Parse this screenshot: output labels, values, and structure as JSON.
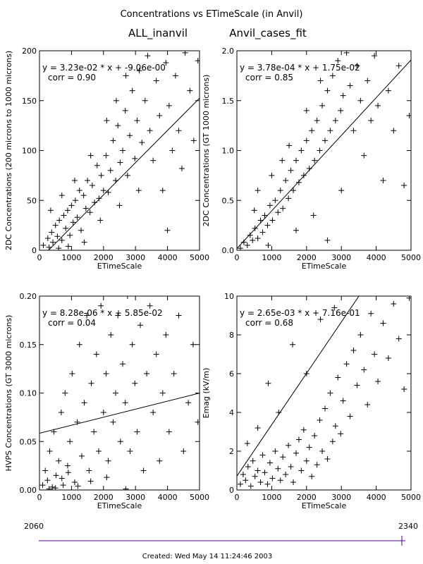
{
  "page": {
    "title": "Concentrations vs ETimeScale (in Anvil)",
    "subtitle_left": "ALL_inanvil",
    "subtitle_right": "Anvil_cases_fit",
    "footer": "Created: Wed May 14 11:24:46 2003",
    "timeline": {
      "start_label": "2060",
      "end_label": "2340",
      "start": 2060,
      "end": 2340,
      "marker": 2340
    }
  },
  "colors": {
    "ink": "#000000",
    "timeline": "#4b0082",
    "background": "#ffffff"
  },
  "chart_data": [
    {
      "type": "scatter",
      "xlabel": "ETimeScale",
      "ylabel": "2DC Concentrations (200 microns to 1000 microns)",
      "xlim": [
        0,
        5000
      ],
      "ylim": [
        0,
        200
      ],
      "xticks": [
        "0",
        "1000",
        "2000",
        "3000",
        "4000",
        "5000"
      ],
      "yticks": [
        "0",
        "50",
        "100",
        "150",
        "200"
      ],
      "fit_text": "y = 3.23e-02 * x  + -9.06e-00",
      "corr_text": "corr = 0.90",
      "fit": {
        "slope": 0.0323,
        "intercept": -9.06
      },
      "points": [
        [
          120,
          5
        ],
        [
          260,
          12
        ],
        [
          300,
          3
        ],
        [
          380,
          18
        ],
        [
          420,
          8
        ],
        [
          500,
          25
        ],
        [
          560,
          14
        ],
        [
          620,
          30
        ],
        [
          700,
          10
        ],
        [
          760,
          35
        ],
        [
          820,
          22
        ],
        [
          880,
          40
        ],
        [
          950,
          15
        ],
        [
          1000,
          45
        ],
        [
          1050,
          28
        ],
        [
          1120,
          50
        ],
        [
          1180,
          33
        ],
        [
          1250,
          60
        ],
        [
          1300,
          20
        ],
        [
          1380,
          55
        ],
        [
          1450,
          42
        ],
        [
          1500,
          70
        ],
        [
          1580,
          38
        ],
        [
          1650,
          65
        ],
        [
          1720,
          48
        ],
        [
          1800,
          85
        ],
        [
          1860,
          52
        ],
        [
          1930,
          75
        ],
        [
          2000,
          60
        ],
        [
          2080,
          95
        ],
        [
          2150,
          58
        ],
        [
          2220,
          80
        ],
        [
          2300,
          110
        ],
        [
          2380,
          70
        ],
        [
          2450,
          125
        ],
        [
          2520,
          88
        ],
        [
          2600,
          100
        ],
        [
          2680,
          140
        ],
        [
          2750,
          75
        ],
        [
          2820,
          115
        ],
        [
          2900,
          160
        ],
        [
          2980,
          92
        ],
        [
          3050,
          130
        ],
        [
          3120,
          180
        ],
        [
          3200,
          108
        ],
        [
          3300,
          150
        ],
        [
          3380,
          195
        ],
        [
          3450,
          120
        ],
        [
          3550,
          90
        ],
        [
          3650,
          170
        ],
        [
          3750,
          135
        ],
        [
          3850,
          60
        ],
        [
          3950,
          188
        ],
        [
          4050,
          145
        ],
        [
          4150,
          100
        ],
        [
          4250,
          175
        ],
        [
          4350,
          120
        ],
        [
          4450,
          82
        ],
        [
          4550,
          198
        ],
        [
          4700,
          160
        ],
        [
          4820,
          110
        ],
        [
          4950,
          190
        ],
        [
          350,
          40
        ],
        [
          600,
          2
        ],
        [
          900,
          4
        ],
        [
          1400,
          8
        ],
        [
          1900,
          30
        ],
        [
          2500,
          45
        ],
        [
          3100,
          60
        ],
        [
          4000,
          20
        ],
        [
          700,
          55
        ],
        [
          1100,
          70
        ],
        [
          1600,
          95
        ],
        [
          2100,
          130
        ],
        [
          2400,
          150
        ],
        [
          2700,
          175
        ]
      ]
    },
    {
      "type": "scatter",
      "xlabel": "ETimeScale",
      "ylabel": "2DC Concentrations (GT 1000 microns)",
      "xlim": [
        0,
        5000
      ],
      "ylim": [
        0,
        2.0
      ],
      "xticks": [
        "0",
        "1000",
        "2000",
        "3000",
        "4000",
        "5000"
      ],
      "yticks": [
        "0.0",
        "0.5",
        "1.0",
        "1.5",
        "2.0"
      ],
      "fit_text": "y = 3.78e-04 * x  + 1.75e-02",
      "corr_text": "corr = 0.85",
      "fit": {
        "slope": 0.000378,
        "intercept": 0.0175
      },
      "points": [
        [
          100,
          0.02
        ],
        [
          200,
          0.08
        ],
        [
          300,
          0.05
        ],
        [
          380,
          0.15
        ],
        [
          450,
          0.1
        ],
        [
          520,
          0.22
        ],
        [
          600,
          0.12
        ],
        [
          680,
          0.3
        ],
        [
          740,
          0.18
        ],
        [
          800,
          0.35
        ],
        [
          880,
          0.25
        ],
        [
          950,
          0.45
        ],
        [
          1020,
          0.3
        ],
        [
          1100,
          0.5
        ],
        [
          1180,
          0.38
        ],
        [
          1250,
          0.6
        ],
        [
          1320,
          0.42
        ],
        [
          1400,
          0.7
        ],
        [
          1480,
          0.52
        ],
        [
          1550,
          0.8
        ],
        [
          1620,
          0.6
        ],
        [
          1700,
          0.9
        ],
        [
          1780,
          0.68
        ],
        [
          1850,
          1.0
        ],
        [
          1920,
          0.75
        ],
        [
          2000,
          1.1
        ],
        [
          2080,
          0.82
        ],
        [
          2150,
          1.2
        ],
        [
          2230,
          0.9
        ],
        [
          2300,
          1.3
        ],
        [
          2380,
          1.0
        ],
        [
          2450,
          1.45
        ],
        [
          2530,
          1.1
        ],
        [
          2600,
          1.6
        ],
        [
          2680,
          1.2
        ],
        [
          2750,
          1.75
        ],
        [
          2830,
          1.3
        ],
        [
          2900,
          1.9
        ],
        [
          2980,
          1.4
        ],
        [
          3050,
          1.55
        ],
        [
          3150,
          1.98
        ],
        [
          3250,
          1.65
        ],
        [
          3350,
          1.2
        ],
        [
          3450,
          1.85
        ],
        [
          3550,
          1.5
        ],
        [
          3650,
          0.95
        ],
        [
          3750,
          1.7
        ],
        [
          3850,
          1.3
        ],
        [
          3950,
          1.95
        ],
        [
          4050,
          1.45
        ],
        [
          4200,
          0.7
        ],
        [
          4350,
          1.6
        ],
        [
          4500,
          1.2
        ],
        [
          4650,
          1.85
        ],
        [
          4800,
          0.65
        ],
        [
          4950,
          1.35
        ],
        [
          500,
          0.4
        ],
        [
          900,
          0.05
        ],
        [
          1300,
          0.9
        ],
        [
          1700,
          0.2
        ],
        [
          2200,
          0.35
        ],
        [
          2600,
          0.1
        ],
        [
          3000,
          0.6
        ],
        [
          600,
          0.6
        ],
        [
          1000,
          0.75
        ],
        [
          1500,
          1.05
        ],
        [
          2000,
          1.4
        ],
        [
          2400,
          1.7
        ]
      ]
    },
    {
      "type": "scatter",
      "xlabel": "ETimeScale",
      "ylabel": "HVPS Concentrations (GT 3000 microns)",
      "xlim": [
        0,
        5000
      ],
      "ylim": [
        0,
        0.2
      ],
      "xticks": [
        "0",
        "1000",
        "2000",
        "3000",
        "4000",
        "5000"
      ],
      "yticks": [
        "0.00",
        "0.05",
        "0.10",
        "0.15",
        "0.20"
      ],
      "fit_text": "y = 8.28e-06 * x  + 5.85e-02",
      "corr_text": "corr = 0.04",
      "fit": {
        "slope": 8.28e-06,
        "intercept": 0.0585
      },
      "points": [
        [
          100,
          0.005
        ],
        [
          180,
          0.02
        ],
        [
          250,
          0.01
        ],
        [
          320,
          0.04
        ],
        [
          400,
          0.003
        ],
        [
          450,
          0.06
        ],
        [
          520,
          0.015
        ],
        [
          600,
          0.03
        ],
        [
          680,
          0.08
        ],
        [
          740,
          0.005
        ],
        [
          800,
          0.1
        ],
        [
          880,
          0.025
        ],
        [
          950,
          0.05
        ],
        [
          1020,
          0.12
        ],
        [
          1100,
          0.008
        ],
        [
          1180,
          0.07
        ],
        [
          1250,
          0.15
        ],
        [
          1320,
          0.035
        ],
        [
          1400,
          0.09
        ],
        [
          1480,
          0.18
        ],
        [
          1550,
          0.02
        ],
        [
          1620,
          0.11
        ],
        [
          1700,
          0.06
        ],
        [
          1780,
          0.14
        ],
        [
          1850,
          0.04
        ],
        [
          1920,
          0.19
        ],
        [
          2000,
          0.08
        ],
        [
          2080,
          0.12
        ],
        [
          2150,
          0.03
        ],
        [
          2230,
          0.16
        ],
        [
          2300,
          0.07
        ],
        [
          2380,
          0.1
        ],
        [
          2450,
          0.18
        ],
        [
          2530,
          0.05
        ],
        [
          2600,
          0.13
        ],
        [
          2680,
          0.09
        ],
        [
          2750,
          0.2
        ],
        [
          2830,
          0.04
        ],
        [
          2900,
          0.15
        ],
        [
          2980,
          0.11
        ],
        [
          3050,
          0.06
        ],
        [
          3150,
          0.17
        ],
        [
          3250,
          0.02
        ],
        [
          3350,
          0.12
        ],
        [
          3450,
          0.19
        ],
        [
          3550,
          0.08
        ],
        [
          3650,
          0.14
        ],
        [
          3750,
          0.03
        ],
        [
          3850,
          0.1
        ],
        [
          3950,
          0.16
        ],
        [
          4050,
          0.06
        ],
        [
          4200,
          0.12
        ],
        [
          4350,
          0.18
        ],
        [
          4500,
          0.04
        ],
        [
          4650,
          0.09
        ],
        [
          4800,
          0.15
        ],
        [
          4950,
          0.07
        ],
        [
          300,
          0.001
        ],
        [
          500,
          0.002
        ],
        [
          700,
          0.012
        ],
        [
          900,
          0.018
        ],
        [
          1200,
          0.004
        ],
        [
          1600,
          0.009
        ],
        [
          2100,
          0.013
        ],
        [
          2700,
          0.001
        ]
      ]
    },
    {
      "type": "scatter",
      "xlabel": "ETimeScale",
      "ylabel": "Emag (kV/m)",
      "xlim": [
        0,
        5000
      ],
      "ylim": [
        0,
        10
      ],
      "xticks": [
        "0",
        "1000",
        "2000",
        "3000",
        "4000",
        "5000"
      ],
      "yticks": [
        "0",
        "2",
        "4",
        "6",
        "8",
        "10"
      ],
      "fit_text": "y = 2.65e-03 * x  + 7.16e-01",
      "corr_text": "corr = 0.68",
      "fit": {
        "slope": 0.00265,
        "intercept": 0.716
      },
      "points": [
        [
          100,
          0.3
        ],
        [
          180,
          0.8
        ],
        [
          250,
          0.5
        ],
        [
          320,
          1.2
        ],
        [
          400,
          0.2
        ],
        [
          460,
          1.5
        ],
        [
          520,
          0.7
        ],
        [
          600,
          1.0
        ],
        [
          680,
          0.4
        ],
        [
          740,
          1.8
        ],
        [
          800,
          0.9
        ],
        [
          880,
          0.3
        ],
        [
          950,
          1.4
        ],
        [
          1020,
          0.6
        ],
        [
          1100,
          2.0
        ],
        [
          1180,
          1.1
        ],
        [
          1250,
          0.5
        ],
        [
          1320,
          1.7
        ],
        [
          1400,
          0.8
        ],
        [
          1480,
          2.3
        ],
        [
          1550,
          1.2
        ],
        [
          1620,
          0.4
        ],
        [
          1700,
          1.9
        ],
        [
          1780,
          2.6
        ],
        [
          1850,
          1.0
        ],
        [
          1920,
          3.1
        ],
        [
          2000,
          1.5
        ],
        [
          2080,
          2.2
        ],
        [
          2150,
          0.7
        ],
        [
          2230,
          2.8
        ],
        [
          2300,
          1.3
        ],
        [
          2380,
          3.6
        ],
        [
          2450,
          2.0
        ],
        [
          2530,
          4.2
        ],
        [
          2600,
          1.6
        ],
        [
          2680,
          5.0
        ],
        [
          2750,
          2.5
        ],
        [
          2830,
          3.3
        ],
        [
          2900,
          5.8
        ],
        [
          2980,
          2.9
        ],
        [
          3050,
          4.6
        ],
        [
          3150,
          6.5
        ],
        [
          3250,
          3.8
        ],
        [
          3350,
          7.2
        ],
        [
          3450,
          5.4
        ],
        [
          3550,
          8.0
        ],
        [
          3650,
          6.2
        ],
        [
          3750,
          4.4
        ],
        [
          3850,
          9.1
        ],
        [
          3950,
          7.0
        ],
        [
          4050,
          5.6
        ],
        [
          4200,
          8.6
        ],
        [
          4350,
          6.8
        ],
        [
          4500,
          9.6
        ],
        [
          4650,
          7.8
        ],
        [
          4800,
          5.2
        ],
        [
          4950,
          9.9
        ],
        [
          300,
          2.4
        ],
        [
          600,
          3.2
        ],
        [
          900,
          5.5
        ],
        [
          1200,
          4.0
        ],
        [
          1600,
          7.5
        ],
        [
          2000,
          6.0
        ],
        [
          2400,
          8.8
        ],
        [
          2800,
          9.4
        ]
      ]
    }
  ]
}
